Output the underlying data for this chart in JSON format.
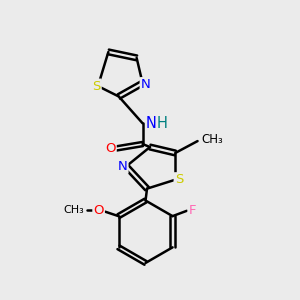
{
  "bg_color": "#ebebeb",
  "bond_color": "#000000",
  "atom_colors": {
    "N": "#0000ff",
    "S": "#cccc00",
    "O": "#ff0000",
    "F": "#ff69b4",
    "H": "#008080",
    "C": "#000000"
  },
  "figsize": [
    3.0,
    3.0
  ],
  "dpi": 100
}
